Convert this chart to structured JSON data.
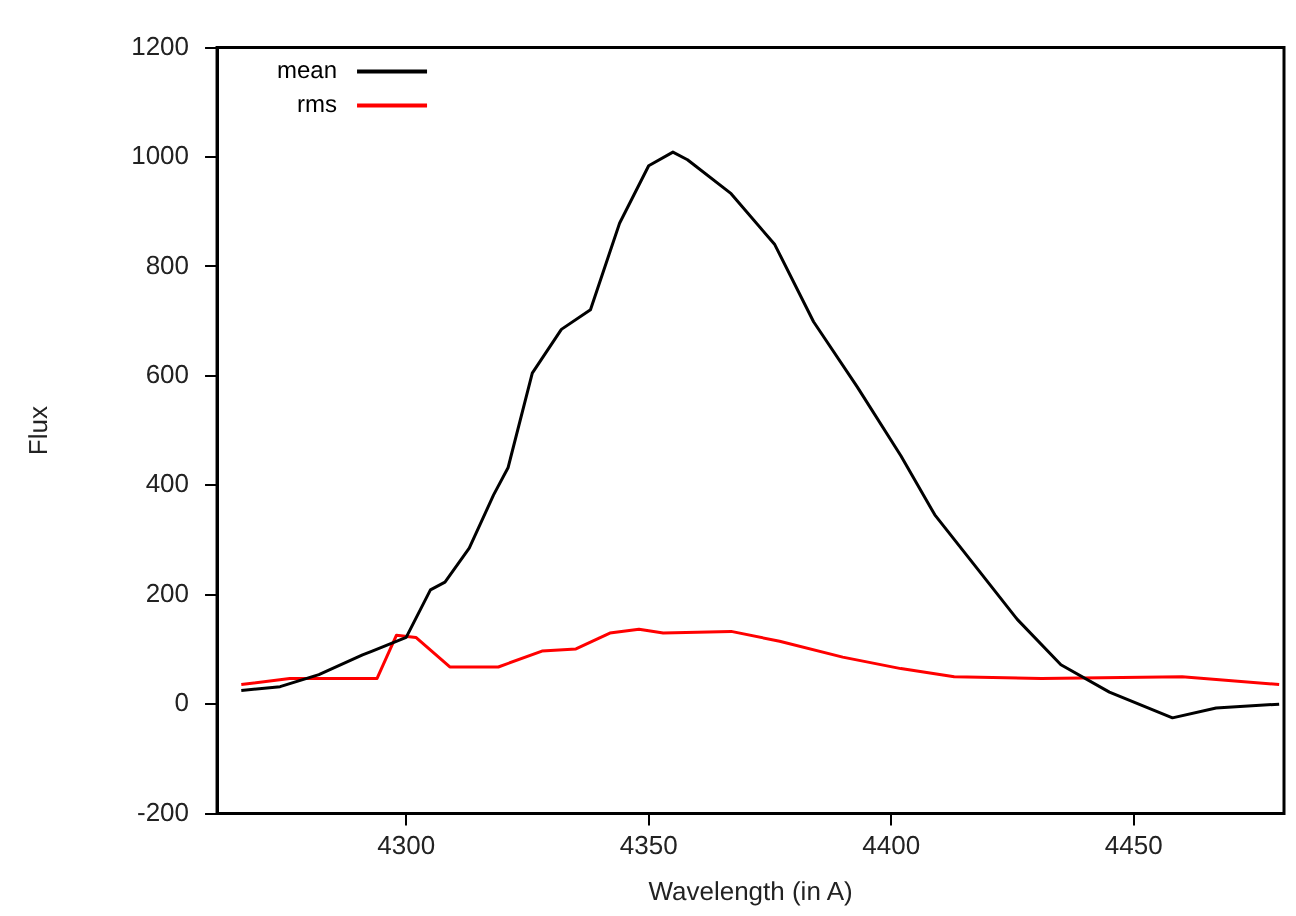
{
  "chart_data": {
    "type": "line",
    "xlabel": "Wavelength (in A)",
    "ylabel": "Flux",
    "xlim": [
      4261,
      4481
    ],
    "xticks": [
      4300,
      4350,
      4400,
      4450
    ],
    "ylim": [
      -200,
      1200
    ],
    "yticks": [
      -200,
      0,
      200,
      400,
      600,
      800,
      1000,
      1200
    ],
    "grid": false,
    "legend": "top left",
    "marker": "none",
    "line_style": "solid",
    "series": [
      {
        "name": "mean",
        "color": "#000000",
        "x": [
          4266,
          4274,
          4282,
          4291,
          4293,
          4300,
          4305,
          4308,
          4313,
          4318,
          4321,
          4326,
          4332,
          4338,
          4344,
          4350,
          4355,
          4358,
          4367,
          4376,
          4384,
          4393,
          4402,
          4409,
          4418,
          4426,
          4435,
          4445,
          4458,
          4467,
          4480
        ],
        "values": [
          25,
          32,
          54,
          90,
          97,
          122,
          209,
          223,
          285,
          382,
          432,
          605,
          685,
          721,
          879,
          984,
          1009,
          995,
          933,
          840,
          699,
          580,
          454,
          346,
          245,
          155,
          72,
          22,
          -25,
          -7,
          0
        ]
      },
      {
        "name": "rms",
        "color": "#ff0000",
        "x": [
          4266,
          4276,
          4286,
          4294,
          4298,
          4302,
          4309,
          4319,
          4328,
          4335,
          4342,
          4348,
          4353,
          4367,
          4377,
          4390,
          4402,
          4413,
          4431,
          4460,
          4480
        ],
        "values": [
          36,
          47,
          47,
          47,
          126,
          122,
          68,
          68,
          97,
          101,
          130,
          137,
          130,
          133,
          115,
          86,
          65,
          50,
          47,
          50,
          36
        ]
      }
    ]
  }
}
